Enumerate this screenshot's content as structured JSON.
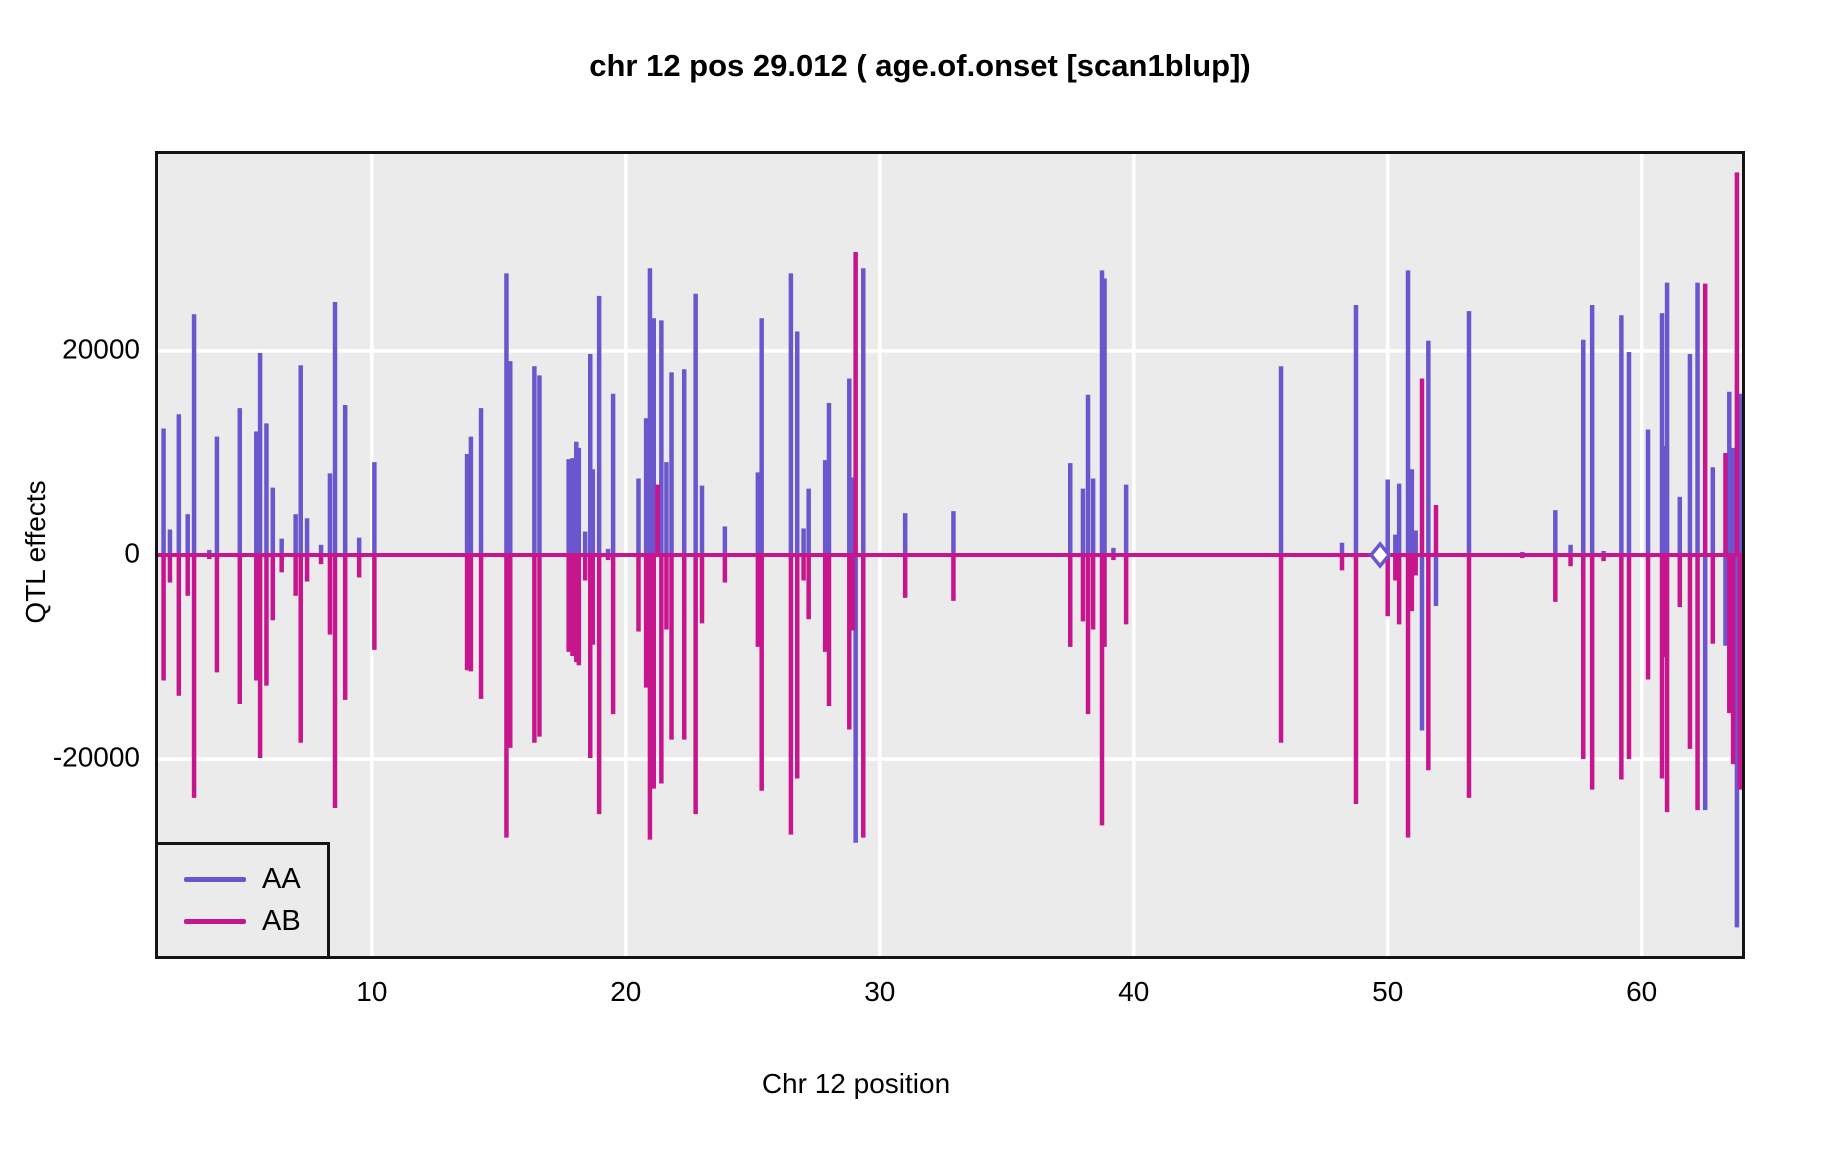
{
  "title": "chr 12 pos 29.012 ( age.of.onset  [scan1blup])",
  "axes": {
    "x_label": "Chr 12 position",
    "y_label": "QTL effects",
    "x_ticks": [
      10,
      20,
      30,
      40,
      50,
      60
    ],
    "y_ticks": [
      20000,
      0,
      -20000
    ],
    "x_domain": [
      1.58,
      63.95
    ],
    "y_domain": [
      -39300,
      39300
    ]
  },
  "legend": {
    "items": [
      {
        "label": "AA",
        "color": "#6a57ce"
      },
      {
        "label": "AB",
        "color": "#c7168d"
      }
    ]
  },
  "colors": {
    "aa": "#6a57ce",
    "ab": "#c7168d",
    "plot_bg": "#ECEBEB",
    "grid": "#ffffff",
    "border": "#141414",
    "marker_fill": "#ffffff"
  },
  "chart_data": {
    "type": "line",
    "description": "QTL effect BLUP coefficients along chromosome 12; two series (AA slateblue, AB violetred) plotted as near-zero baselines with vertical spikes; AA spikes mostly positive, AB mostly mirrored negative; spikes = [position_cM, AA_effect, AB_effect]",
    "baseline": 0,
    "marker": {
      "position": 49.7,
      "value": 0,
      "shape": "open-diamond",
      "series": "AA"
    },
    "spikes": [
      [
        1.8,
        12400,
        -12300
      ],
      [
        2.05,
        2500,
        -2700
      ],
      [
        2.4,
        13800,
        -13800
      ],
      [
        2.75,
        4000,
        -4000
      ],
      [
        3.0,
        23600,
        -23800
      ],
      [
        3.6,
        500,
        -400
      ],
      [
        3.9,
        11600,
        -11500
      ],
      [
        4.8,
        14400,
        -14600
      ],
      [
        5.45,
        12100,
        -12300
      ],
      [
        5.6,
        19800,
        -19900
      ],
      [
        5.85,
        12900,
        -12800
      ],
      [
        6.1,
        6600,
        -6400
      ],
      [
        6.45,
        1600,
        -1700
      ],
      [
        7.0,
        4000,
        -4000
      ],
      [
        7.2,
        18600,
        -18400
      ],
      [
        7.45,
        3600,
        -2600
      ],
      [
        8.0,
        1000,
        -900
      ],
      [
        8.35,
        8000,
        -7800
      ],
      [
        8.55,
        24800,
        -24800
      ],
      [
        8.95,
        14700,
        -14200
      ],
      [
        9.5,
        1700,
        -2200
      ],
      [
        10.1,
        9100,
        -9300
      ],
      [
        13.75,
        9900,
        -11300
      ],
      [
        13.9,
        11600,
        -11400
      ],
      [
        14.3,
        14400,
        -14100
      ],
      [
        15.3,
        27600,
        -27700
      ],
      [
        15.45,
        19000,
        -18900
      ],
      [
        16.4,
        18500,
        -18400
      ],
      [
        16.6,
        17600,
        -17800
      ],
      [
        17.75,
        9400,
        -9500
      ],
      [
        17.9,
        9500,
        -9900
      ],
      [
        18.05,
        11100,
        -10500
      ],
      [
        18.15,
        10500,
        -10800
      ],
      [
        18.4,
        2300,
        -2500
      ],
      [
        18.6,
        19700,
        -19900
      ],
      [
        18.7,
        8400,
        -8800
      ],
      [
        18.95,
        25400,
        -25400
      ],
      [
        19.3,
        600,
        -500
      ],
      [
        19.5,
        15800,
        -15600
      ],
      [
        20.5,
        7500,
        -7500
      ],
      [
        20.8,
        13400,
        -13000
      ],
      [
        20.95,
        28100,
        -27900
      ],
      [
        21.1,
        23200,
        -22900
      ],
      [
        21.25,
        1500,
        6900
      ],
      [
        21.4,
        23000,
        -22400
      ],
      [
        21.6,
        9100,
        -7300
      ],
      [
        21.8,
        17900,
        -18100
      ],
      [
        22.3,
        18200,
        -18100
      ],
      [
        22.75,
        25600,
        -25400
      ],
      [
        23.0,
        6800,
        -6700
      ],
      [
        23.9,
        2800,
        -2700
      ],
      [
        25.2,
        8100,
        -9000
      ],
      [
        25.35,
        23200,
        -23100
      ],
      [
        26.5,
        27600,
        -27400
      ],
      [
        26.75,
        21900,
        -21900
      ],
      [
        27.0,
        2600,
        -2500
      ],
      [
        27.2,
        6500,
        -6300
      ],
      [
        27.85,
        9300,
        -9500
      ],
      [
        28.0,
        14900,
        -14800
      ],
      [
        28.8,
        17300,
        -17100
      ],
      [
        28.95,
        7600,
        -7400
      ],
      [
        29.05,
        -28200,
        29700
      ],
      [
        29.35,
        28100,
        -27700
      ],
      [
        31.0,
        4100,
        -4200
      ],
      [
        32.9,
        4300,
        -4500
      ],
      [
        37.5,
        9000,
        -9000
      ],
      [
        38.0,
        6500,
        -6500
      ],
      [
        38.2,
        15700,
        -15600
      ],
      [
        38.4,
        7500,
        -7300
      ],
      [
        38.75,
        27900,
        -26500
      ],
      [
        38.85,
        27100,
        -9000
      ],
      [
        39.2,
        700,
        -500
      ],
      [
        39.7,
        6900,
        -6800
      ],
      [
        45.8,
        18500,
        -18400
      ],
      [
        48.2,
        1200,
        -1500
      ],
      [
        48.75,
        24500,
        -24400
      ],
      [
        50.0,
        7400,
        -6000
      ],
      [
        50.3,
        2000,
        -2500
      ],
      [
        50.45,
        7000,
        -6800
      ],
      [
        50.8,
        27900,
        -27700
      ],
      [
        50.95,
        8400,
        -5500
      ],
      [
        51.1,
        2400,
        -2000
      ],
      [
        51.35,
        -17200,
        17300
      ],
      [
        51.6,
        21000,
        -21100
      ],
      [
        51.9,
        -5000,
        4900
      ],
      [
        53.2,
        23900,
        -23800
      ],
      [
        55.3,
        300,
        -300
      ],
      [
        56.6,
        4400,
        -4600
      ],
      [
        57.2,
        1000,
        -1100
      ],
      [
        57.7,
        21100,
        -20000
      ],
      [
        58.05,
        24500,
        -23000
      ],
      [
        58.5,
        400,
        -600
      ],
      [
        59.2,
        23500,
        -22000
      ],
      [
        59.5,
        19900,
        -20000
      ],
      [
        60.25,
        12300,
        -12200
      ],
      [
        60.8,
        23700,
        -21900
      ],
      [
        60.9,
        10700,
        -10000
      ],
      [
        61.0,
        26700,
        -25200
      ],
      [
        61.5,
        5700,
        -5100
      ],
      [
        61.9,
        19700,
        -19000
      ],
      [
        62.2,
        26700,
        -25000
      ],
      [
        62.5,
        -25000,
        26600
      ],
      [
        62.8,
        8600,
        -8700
      ],
      [
        63.3,
        -8900,
        10000
      ],
      [
        63.45,
        16000,
        -15500
      ],
      [
        63.6,
        10500,
        -20500
      ],
      [
        63.75,
        -36500,
        37500
      ],
      [
        63.9,
        15800,
        -23000
      ]
    ]
  }
}
